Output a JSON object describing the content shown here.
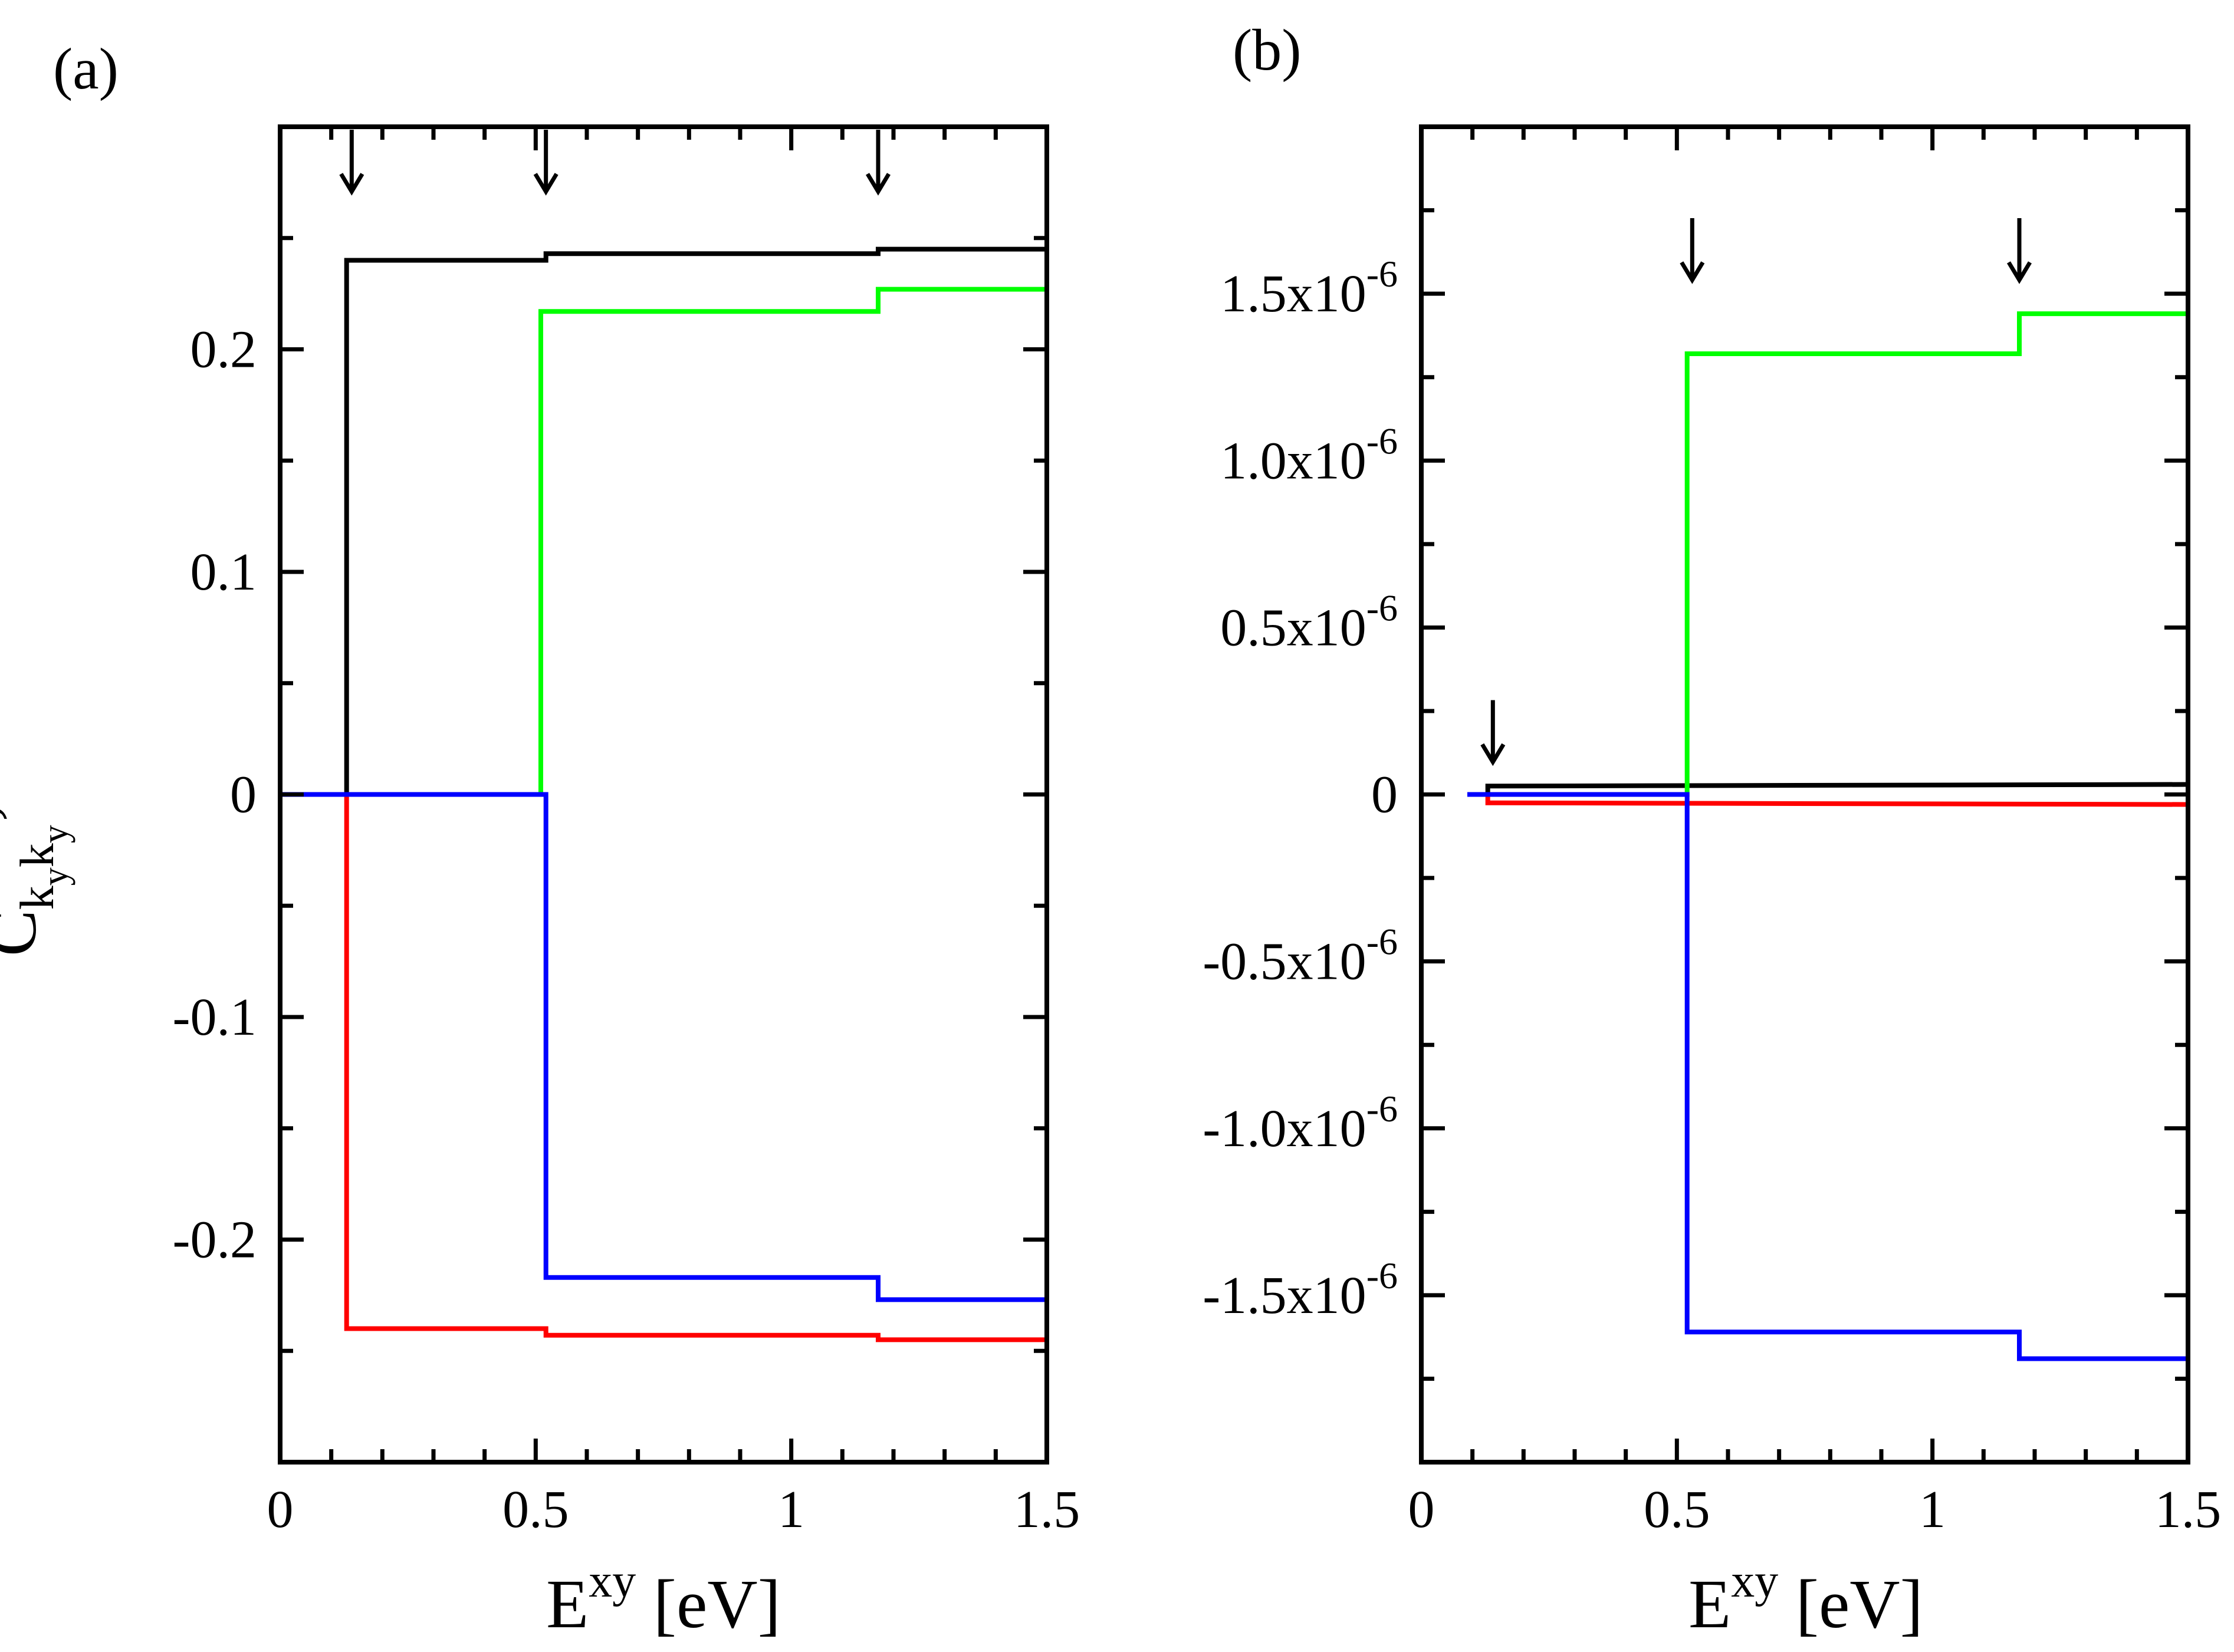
{
  "figure": {
    "ylabel": {
      "main": "C",
      "sub1": "k",
      "subsub1": "y",
      "sub2": "k",
      "subsub2": "y",
      "prime": "’"
    }
  },
  "colors": {
    "black": "#000000",
    "green": "#00ff00",
    "red": "#ff0000",
    "blue": "#0000ff"
  },
  "chart_data": [
    {
      "type": "line",
      "step": true,
      "panel_label": "(a)",
      "xlabel": {
        "main": "E",
        "sup": "xy",
        "unit": " [eV]"
      },
      "ylabel": "C_{k_y k_y'}",
      "xlim": [
        0,
        1.5
      ],
      "ylim": [
        -0.3,
        0.3
      ],
      "xticks": [
        {
          "value": 0,
          "label": "0"
        },
        {
          "value": 0.5,
          "label": "0.5"
        },
        {
          "value": 1,
          "label": "1"
        },
        {
          "value": 1.5,
          "label": "1.5"
        }
      ],
      "yticks": [
        {
          "value": -0.2,
          "label": "-0.2"
        },
        {
          "value": -0.1,
          "label": "-0.1"
        },
        {
          "value": 0,
          "label": "0"
        },
        {
          "value": 0.1,
          "label": "0.1"
        },
        {
          "value": 0.2,
          "label": "0.2"
        }
      ],
      "arrows_at_x": [
        0.14,
        0.52,
        1.17
      ],
      "series": [
        {
          "name": "black",
          "color": "#000000",
          "x": [
            0.0,
            0.13,
            0.13,
            0.52,
            0.52,
            1.17,
            1.17,
            1.5
          ],
          "y": [
            0,
            0,
            0.24,
            0.24,
            0.243,
            0.243,
            0.245,
            0.245
          ]
        },
        {
          "name": "green",
          "color": "#00ff00",
          "x": [
            0.0,
            0.51,
            0.51,
            1.17,
            1.17,
            1.5
          ],
          "y": [
            0,
            0,
            0.217,
            0.217,
            0.227,
            0.227
          ]
        },
        {
          "name": "red",
          "color": "#ff0000",
          "x": [
            0.0,
            0.13,
            0.13,
            0.52,
            0.52,
            1.17,
            1.17,
            1.5
          ],
          "y": [
            0,
            0,
            -0.24,
            -0.24,
            -0.243,
            -0.243,
            -0.245,
            -0.245
          ]
        },
        {
          "name": "blue",
          "color": "#0000ff",
          "x": [
            0.0,
            0.52,
            0.52,
            1.17,
            1.17,
            1.5
          ],
          "y": [
            0,
            0,
            -0.217,
            -0.217,
            -0.227,
            -0.227
          ]
        }
      ]
    },
    {
      "type": "line",
      "step": true,
      "panel_label": "(b)",
      "xlabel": {
        "main": "E",
        "sup": "xy",
        "unit": " [eV]"
      },
      "xlim": [
        0,
        1.5
      ],
      "ylim": [
        -2e-06,
        2e-06
      ],
      "xticks": [
        {
          "value": 0,
          "label": "0"
        },
        {
          "value": 0.5,
          "label": "0.5"
        },
        {
          "value": 1,
          "label": "1"
        },
        {
          "value": 1.5,
          "label": "1.5"
        }
      ],
      "yticks": [
        {
          "value": -1.5e-06,
          "mant": "-1.5x10",
          "exp": "-6"
        },
        {
          "value": -1e-06,
          "mant": "-1.0x10",
          "exp": "-6"
        },
        {
          "value": -5e-07,
          "mant": "-0.5x10",
          "exp": "-6"
        },
        {
          "value": 0,
          "mant": "0",
          "exp": ""
        },
        {
          "value": 5e-07,
          "mant": "0.5x10",
          "exp": "-6"
        },
        {
          "value": 1e-06,
          "mant": "1.0x10",
          "exp": "-6"
        },
        {
          "value": 1.5e-06,
          "mant": "1.5x10",
          "exp": "-6"
        }
      ],
      "arrows_at_x": [
        0.14,
        0.53,
        1.17
      ],
      "series": [
        {
          "name": "black",
          "color": "#000000",
          "x": [
            0.09,
            0.13,
            0.13,
            1.5
          ],
          "y": [
            0,
            0,
            2.5e-08,
            3e-08
          ]
        },
        {
          "name": "red",
          "color": "#ff0000",
          "x": [
            0.09,
            0.13,
            0.13,
            1.5
          ],
          "y": [
            0,
            0,
            -2.5e-08,
            -3e-08
          ]
        },
        {
          "name": "green",
          "color": "#00ff00",
          "x": [
            0.09,
            0.52,
            0.52,
            1.17,
            1.17,
            1.5
          ],
          "y": [
            0,
            0,
            1.32e-06,
            1.32e-06,
            1.44e-06,
            1.44e-06
          ]
        },
        {
          "name": "blue",
          "color": "#0000ff",
          "x": [
            0.09,
            0.52,
            0.52,
            1.17,
            1.17,
            1.5
          ],
          "y": [
            0,
            0,
            -1.61e-06,
            -1.61e-06,
            -1.69e-06,
            -1.69e-06
          ]
        }
      ]
    }
  ]
}
